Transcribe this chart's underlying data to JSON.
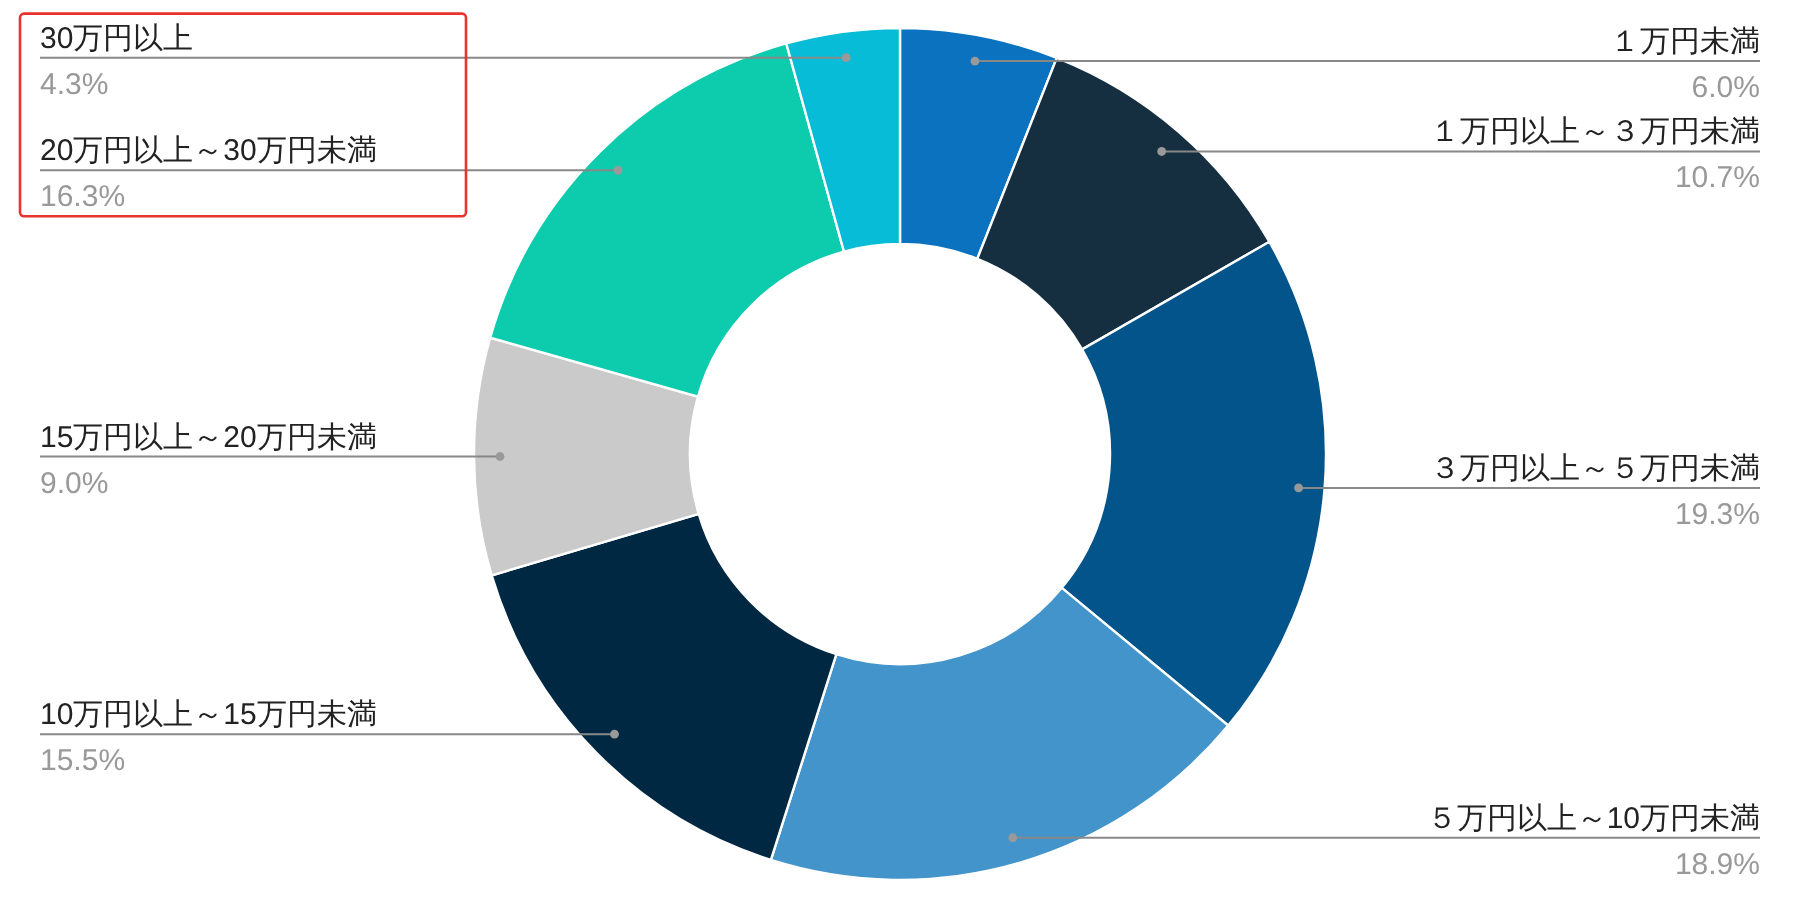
{
  "chart_data": {
    "type": "donut",
    "categories": [
      "１万円未満",
      "１万円以上～３万円未満",
      "３万円以上～５万円未満",
      "５万円以上～10万円未満",
      "10万円以上～15万円未満",
      "15万円以上～20万円未満",
      "20万円以上～30万円未満",
      "30万円以上"
    ],
    "values": [
      6.0,
      10.7,
      19.3,
      18.9,
      15.5,
      9.0,
      16.3,
      4.3
    ],
    "value_labels": [
      "6.0%",
      "10.7%",
      "19.3%",
      "18.9%",
      "15.5%",
      "9.0%",
      "16.3%",
      "4.3%"
    ],
    "colors": [
      "#0a72bf",
      "#152f41",
      "#03548b",
      "#4294cb",
      "#012843",
      "#cacaca",
      "#0dcbad",
      "#07bcd7"
    ]
  }
}
